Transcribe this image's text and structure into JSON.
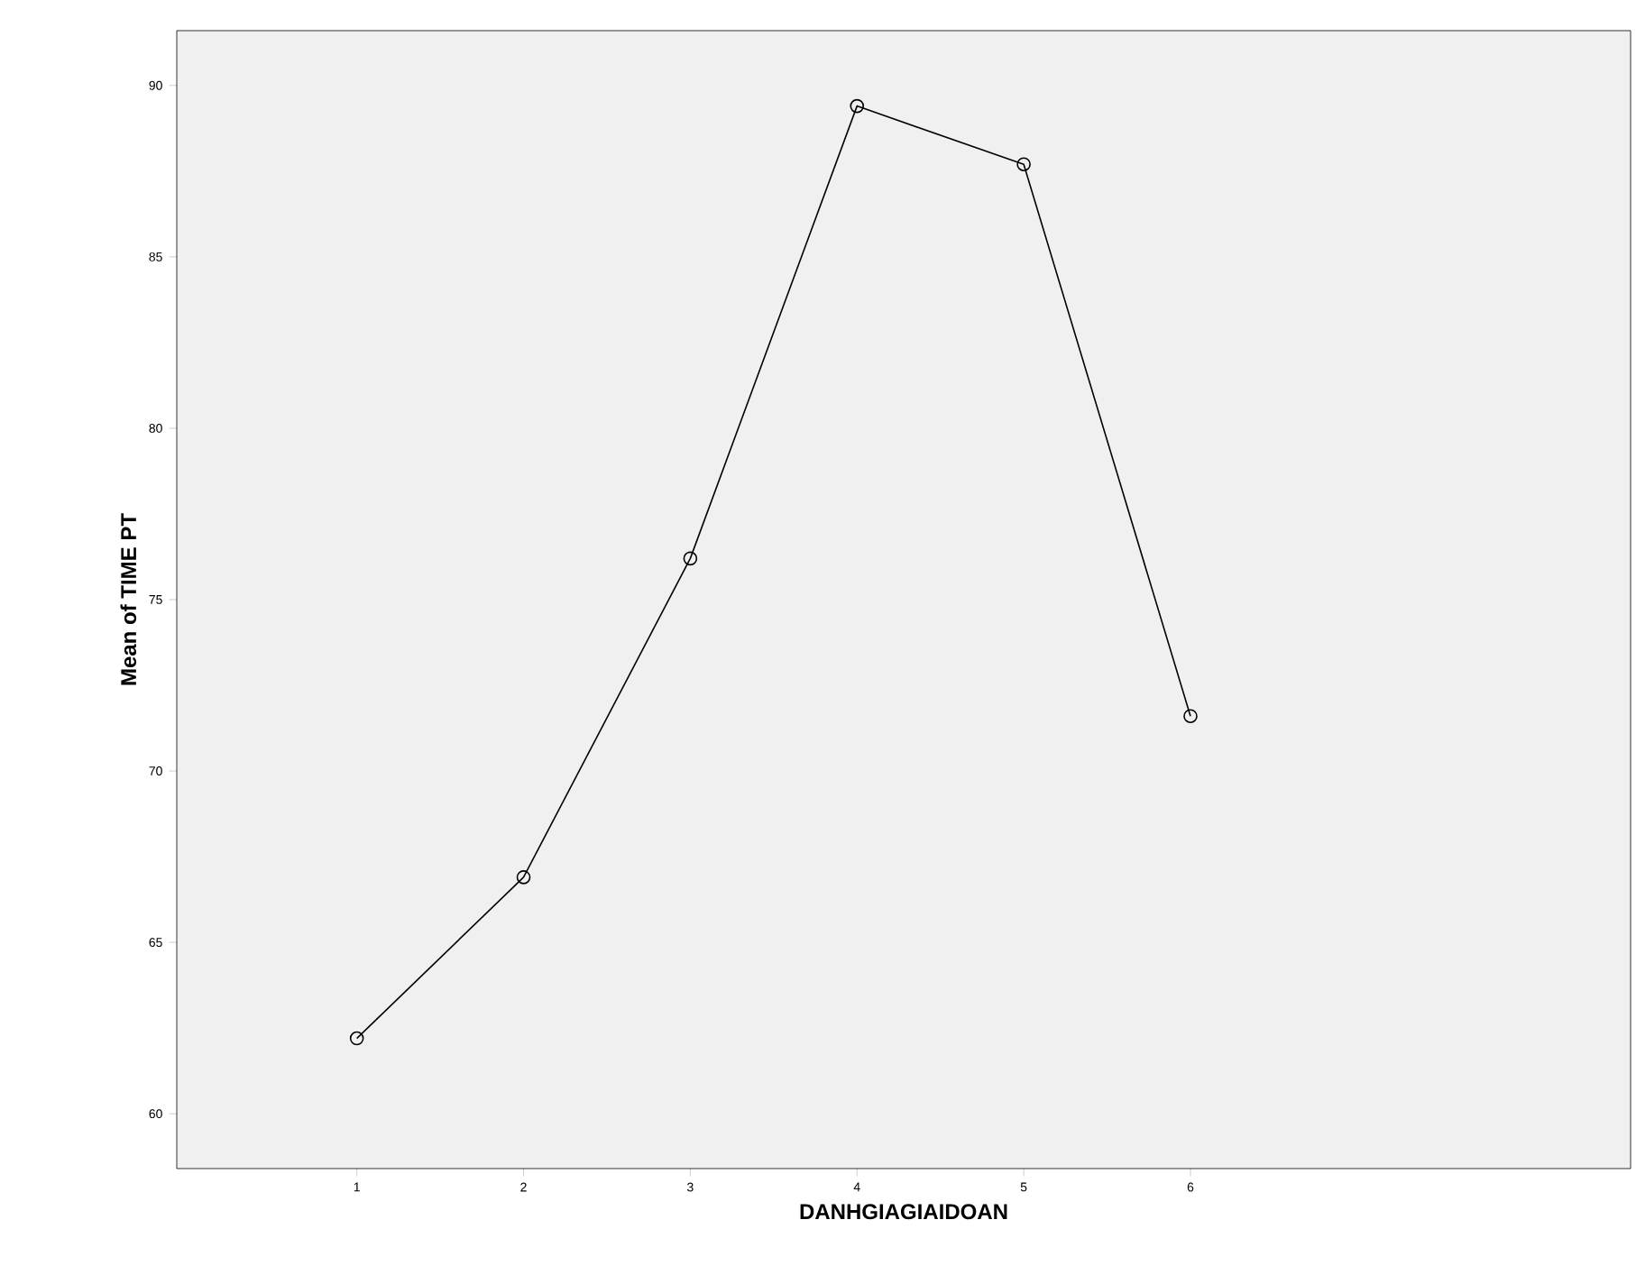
{
  "chart_data": {
    "type": "line",
    "xlabel": "DANHGIAGIAIDOAN",
    "ylabel": "Mean of TIME PT",
    "x": [
      1,
      2,
      3,
      4,
      5,
      6
    ],
    "series": [
      {
        "color": "#000000",
        "values": [
          62.2,
          66.9,
          76.2,
          89.4,
          87.7,
          71.6
        ]
      }
    ],
    "xlim": [
      -0.08,
      8.64
    ],
    "xticks": [
      1,
      2,
      3,
      4,
      5,
      6
    ],
    "ylim": [
      58.4,
      91.6
    ],
    "yticks": [
      60,
      65,
      70,
      75,
      80,
      85,
      90
    ],
    "grid": false,
    "marker": "circle",
    "line_style": "solid"
  }
}
